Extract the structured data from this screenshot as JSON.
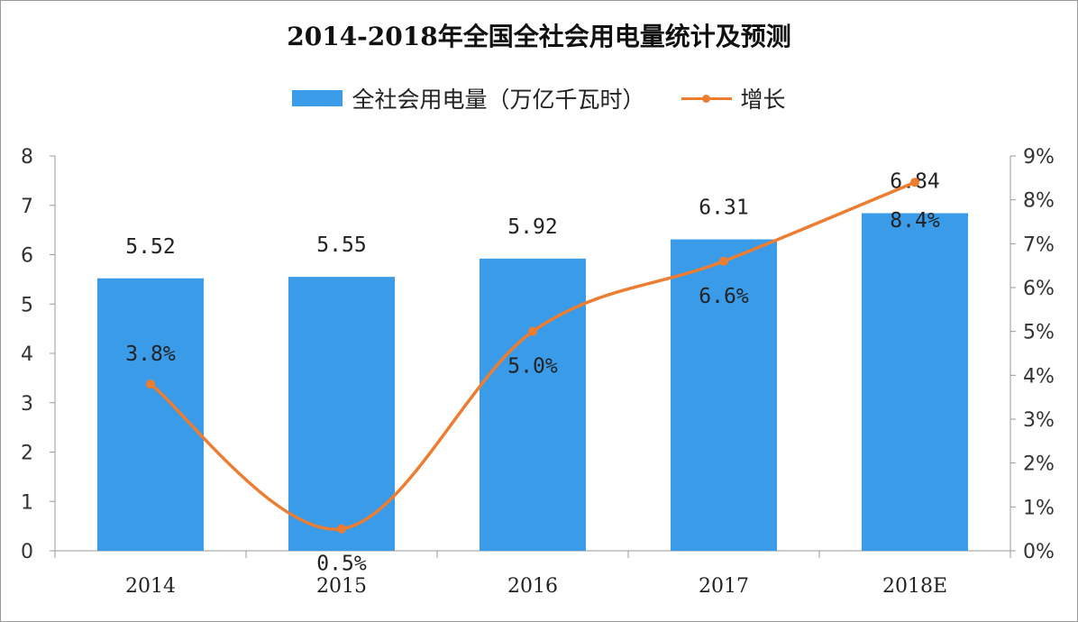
{
  "chart_data": {
    "type": "bar",
    "title": "2014-2018年全国全社会用电量统计及预测",
    "categories": [
      "2014",
      "2015",
      "2016",
      "2017",
      "2018E"
    ],
    "series": [
      {
        "name": "全社会用电量（万亿千瓦时）",
        "type": "bar",
        "axis": "left",
        "values": [
          5.52,
          5.55,
          5.92,
          6.31,
          6.84
        ],
        "labels": [
          "5.52",
          "5.55",
          "5.92",
          "6.31",
          "6.84"
        ]
      },
      {
        "name": "增长",
        "type": "line",
        "axis": "right",
        "values": [
          3.8,
          0.5,
          5.0,
          6.6,
          8.4
        ],
        "labels": [
          "3.8%",
          "0.5%",
          "5.0%",
          "6.6%",
          "8.4%"
        ]
      }
    ],
    "y_left": {
      "min": 0,
      "max": 8,
      "ticks": [
        "0",
        "1",
        "2",
        "3",
        "4",
        "5",
        "6",
        "7",
        "8"
      ]
    },
    "y_right": {
      "min": 0,
      "max": 9,
      "ticks": [
        "0%",
        "1%",
        "2%",
        "3%",
        "4%",
        "5%",
        "6%",
        "7%",
        "8%",
        "9%"
      ]
    },
    "legend_position": "top-center",
    "grid": false,
    "colors": {
      "bar": "#3a9be8",
      "line": "#ed7d31",
      "axis": "#999999"
    }
  }
}
